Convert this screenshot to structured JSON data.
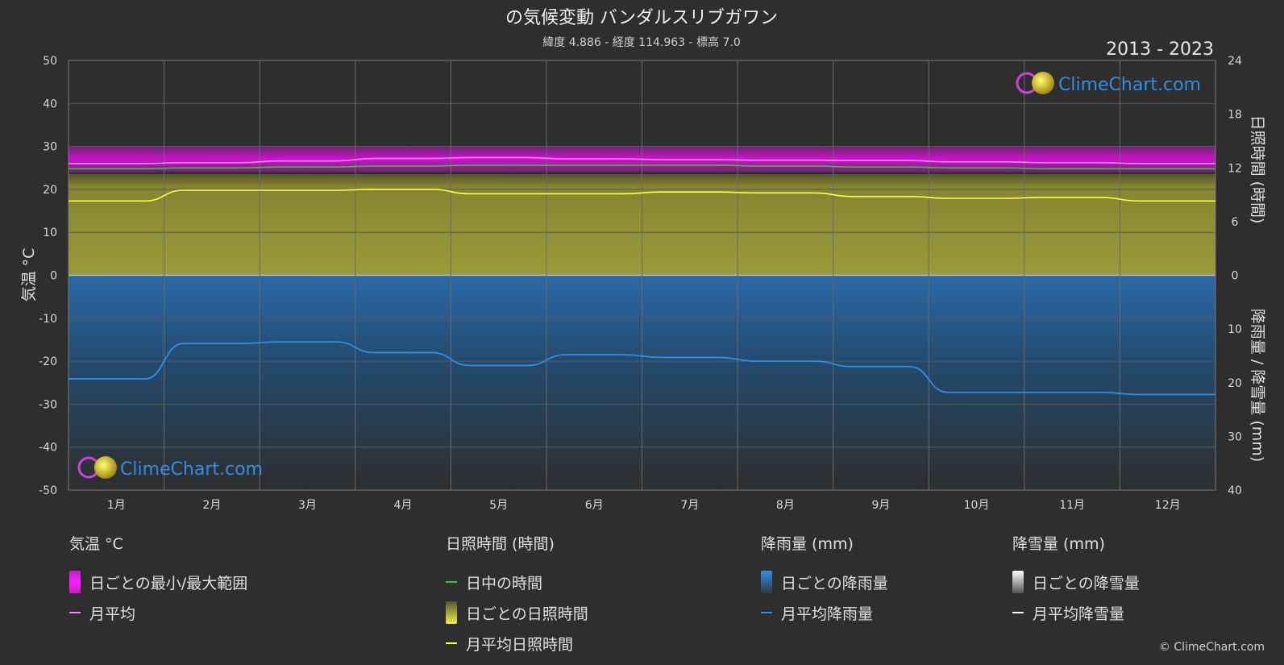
{
  "header": {
    "title": "の気候変動 バンダルスリブガワン",
    "subtitle": "緯度 4.886 - 経度 114.963 - 標高 7.0",
    "year_range": "2013 - 2023"
  },
  "watermark": "ClimeChart.com",
  "copyright": "© ClimeChart.com",
  "colors": {
    "background": "#2e2e2e",
    "temp_range": "#e010e0",
    "temp_avg": "#ff80ff",
    "daylight": "#2ecc2e",
    "sunshine": "#d4d43a",
    "sunshine_avg": "#ffff40",
    "rain": "#2f7ec8",
    "rain_avg": "#2f8fe6",
    "snow": "#ffffff",
    "brand": "#2f8fe6"
  },
  "chart_data": {
    "type": "line",
    "x_categories": [
      "1月",
      "2月",
      "3月",
      "4月",
      "5月",
      "6月",
      "7月",
      "8月",
      "9月",
      "10月",
      "11月",
      "12月"
    ],
    "left_axis": {
      "label": "気温 °C",
      "ylim": [
        -50,
        50
      ],
      "ticks": [
        50,
        40,
        30,
        20,
        10,
        0,
        -10,
        -20,
        -30,
        -40,
        -50
      ]
    },
    "right_axis_top": {
      "label": "日照時間 (時間)",
      "ylim": [
        0,
        24
      ],
      "ticks": [
        24,
        18,
        12,
        6,
        0
      ]
    },
    "right_axis_bottom": {
      "label": "降雨量 / 降雪量 (mm)",
      "ylim": [
        0,
        40
      ],
      "ticks": [
        0,
        10,
        20,
        30,
        40
      ]
    },
    "series": [
      {
        "name": "月平均",
        "axis": "temperature",
        "values": [
          26.0,
          26.2,
          26.6,
          27.2,
          27.4,
          27.1,
          26.9,
          26.8,
          26.7,
          26.4,
          26.2,
          26.0
        ]
      },
      {
        "name": "日中の時間",
        "axis": "sunshine",
        "values": [
          11.9,
          12.0,
          12.1,
          12.2,
          12.3,
          12.3,
          12.3,
          12.2,
          12.1,
          12.0,
          11.9,
          11.9
        ]
      },
      {
        "name": "月平均日照時間",
        "axis": "sunshine",
        "values": [
          8.3,
          9.5,
          9.5,
          9.6,
          9.1,
          9.1,
          9.3,
          9.2,
          8.8,
          8.6,
          8.7,
          8.3
        ]
      },
      {
        "name": "月平均降雨量",
        "axis": "precipitation",
        "values": [
          19.3,
          12.7,
          12.4,
          14.4,
          16.8,
          14.8,
          15.3,
          16.0,
          17.0,
          21.8,
          21.8,
          22.2
        ]
      },
      {
        "name": "月平均降雪量",
        "axis": "precipitation",
        "values": [
          0,
          0,
          0,
          0,
          0,
          0,
          0,
          0,
          0,
          0,
          0,
          0
        ]
      }
    ],
    "temp_daily_range": {
      "name": "日ごとの最小/最大範囲",
      "min": 24,
      "max": 30
    },
    "grid": true
  },
  "legend": {
    "temperature": {
      "title": "気温 °C",
      "items": [
        "日ごとの最小/最大範囲",
        "月平均"
      ]
    },
    "sunshine": {
      "title": "日照時間 (時間)",
      "items": [
        "日中の時間",
        "日ごとの日照時間",
        "月平均日照時間"
      ]
    },
    "rain": {
      "title": "降雨量 (mm)",
      "items": [
        "日ごとの降雨量",
        "月平均降雨量"
      ]
    },
    "snow": {
      "title": "降雪量 (mm)",
      "items": [
        "日ごとの降雪量",
        "月平均降雪量"
      ]
    }
  }
}
